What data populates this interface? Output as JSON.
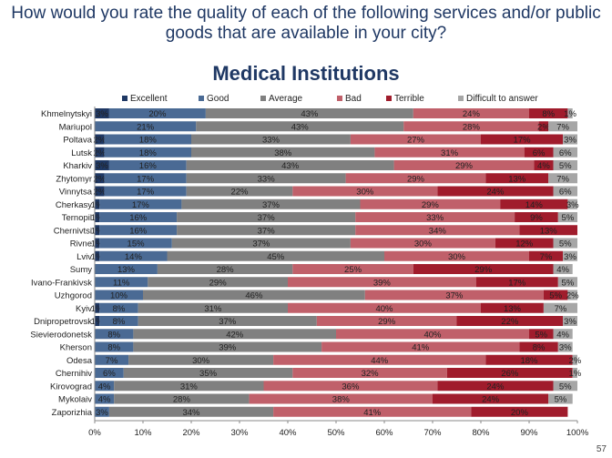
{
  "question": "How would you rate the quality of each of the following services and/or public goods that are available in your city?",
  "page_number": "57",
  "chart_data": {
    "type": "bar",
    "orientation": "horizontal-stacked-100",
    "title": "Medical Institutions",
    "xlim": [
      0,
      100
    ],
    "x_ticks": [
      "0%",
      "10%",
      "20%",
      "30%",
      "40%",
      "50%",
      "60%",
      "70%",
      "80%",
      "90%",
      "100%"
    ],
    "legend_position": "top",
    "series_colors": [
      "#1f3864",
      "#4a6a94",
      "#808080",
      "#c0606a",
      "#a01c2c",
      "#a6a6a6"
    ],
    "series": [
      {
        "name": "Excellent",
        "values": [
          3,
          0,
          2,
          2,
          3,
          2,
          2,
          1,
          1,
          1,
          1,
          1,
          0,
          0,
          0,
          1,
          1,
          0,
          0,
          0,
          0,
          0,
          0,
          0
        ]
      },
      {
        "name": "Good",
        "values": [
          20,
          21,
          18,
          18,
          16,
          17,
          17,
          17,
          16,
          16,
          15,
          14,
          13,
          11,
          10,
          8,
          8,
          8,
          8,
          7,
          6,
          4,
          4,
          3
        ]
      },
      {
        "name": "Average",
        "values": [
          43,
          43,
          33,
          38,
          43,
          33,
          22,
          37,
          37,
          37,
          37,
          45,
          28,
          29,
          46,
          31,
          37,
          42,
          39,
          30,
          35,
          31,
          28,
          34
        ]
      },
      {
        "name": "Bad",
        "values": [
          24,
          28,
          27,
          31,
          29,
          29,
          30,
          29,
          33,
          34,
          30,
          30,
          25,
          39,
          37,
          40,
          29,
          40,
          41,
          44,
          32,
          36,
          38,
          41
        ]
      },
      {
        "name": "Terrible",
        "values": [
          8,
          2,
          17,
          6,
          4,
          13,
          24,
          14,
          9,
          13,
          12,
          7,
          29,
          17,
          5,
          13,
          22,
          5,
          8,
          18,
          26,
          24,
          24,
          20
        ]
      },
      {
        "name": "Difficult to answer",
        "values": [
          1,
          7,
          3,
          6,
          5,
          7,
          6,
          3,
          5,
          0,
          5,
          3,
          4,
          5,
          2,
          7,
          3,
          4,
          3,
          2,
          1,
          5,
          5,
          0
        ]
      }
    ],
    "categories": [
      "Khmelnytskyi",
      "Mariupol",
      "Poltava",
      "Lutsk",
      "Kharkiv",
      "Zhytomyr",
      "Vinnytsa",
      "Cherkasy",
      "Ternopil",
      "Chernivtsi",
      "Rivne",
      "Lviv",
      "Sumy",
      "Ivano-Frankivsk",
      "Uzhgorod",
      "Kyiv",
      "Dnipropetrovsk",
      "Sievierodonetsk",
      "Kherson",
      "Odesa",
      "Chernihiv",
      "Kirovograd",
      "Mykolaiv",
      "Zaporizhia"
    ]
  }
}
